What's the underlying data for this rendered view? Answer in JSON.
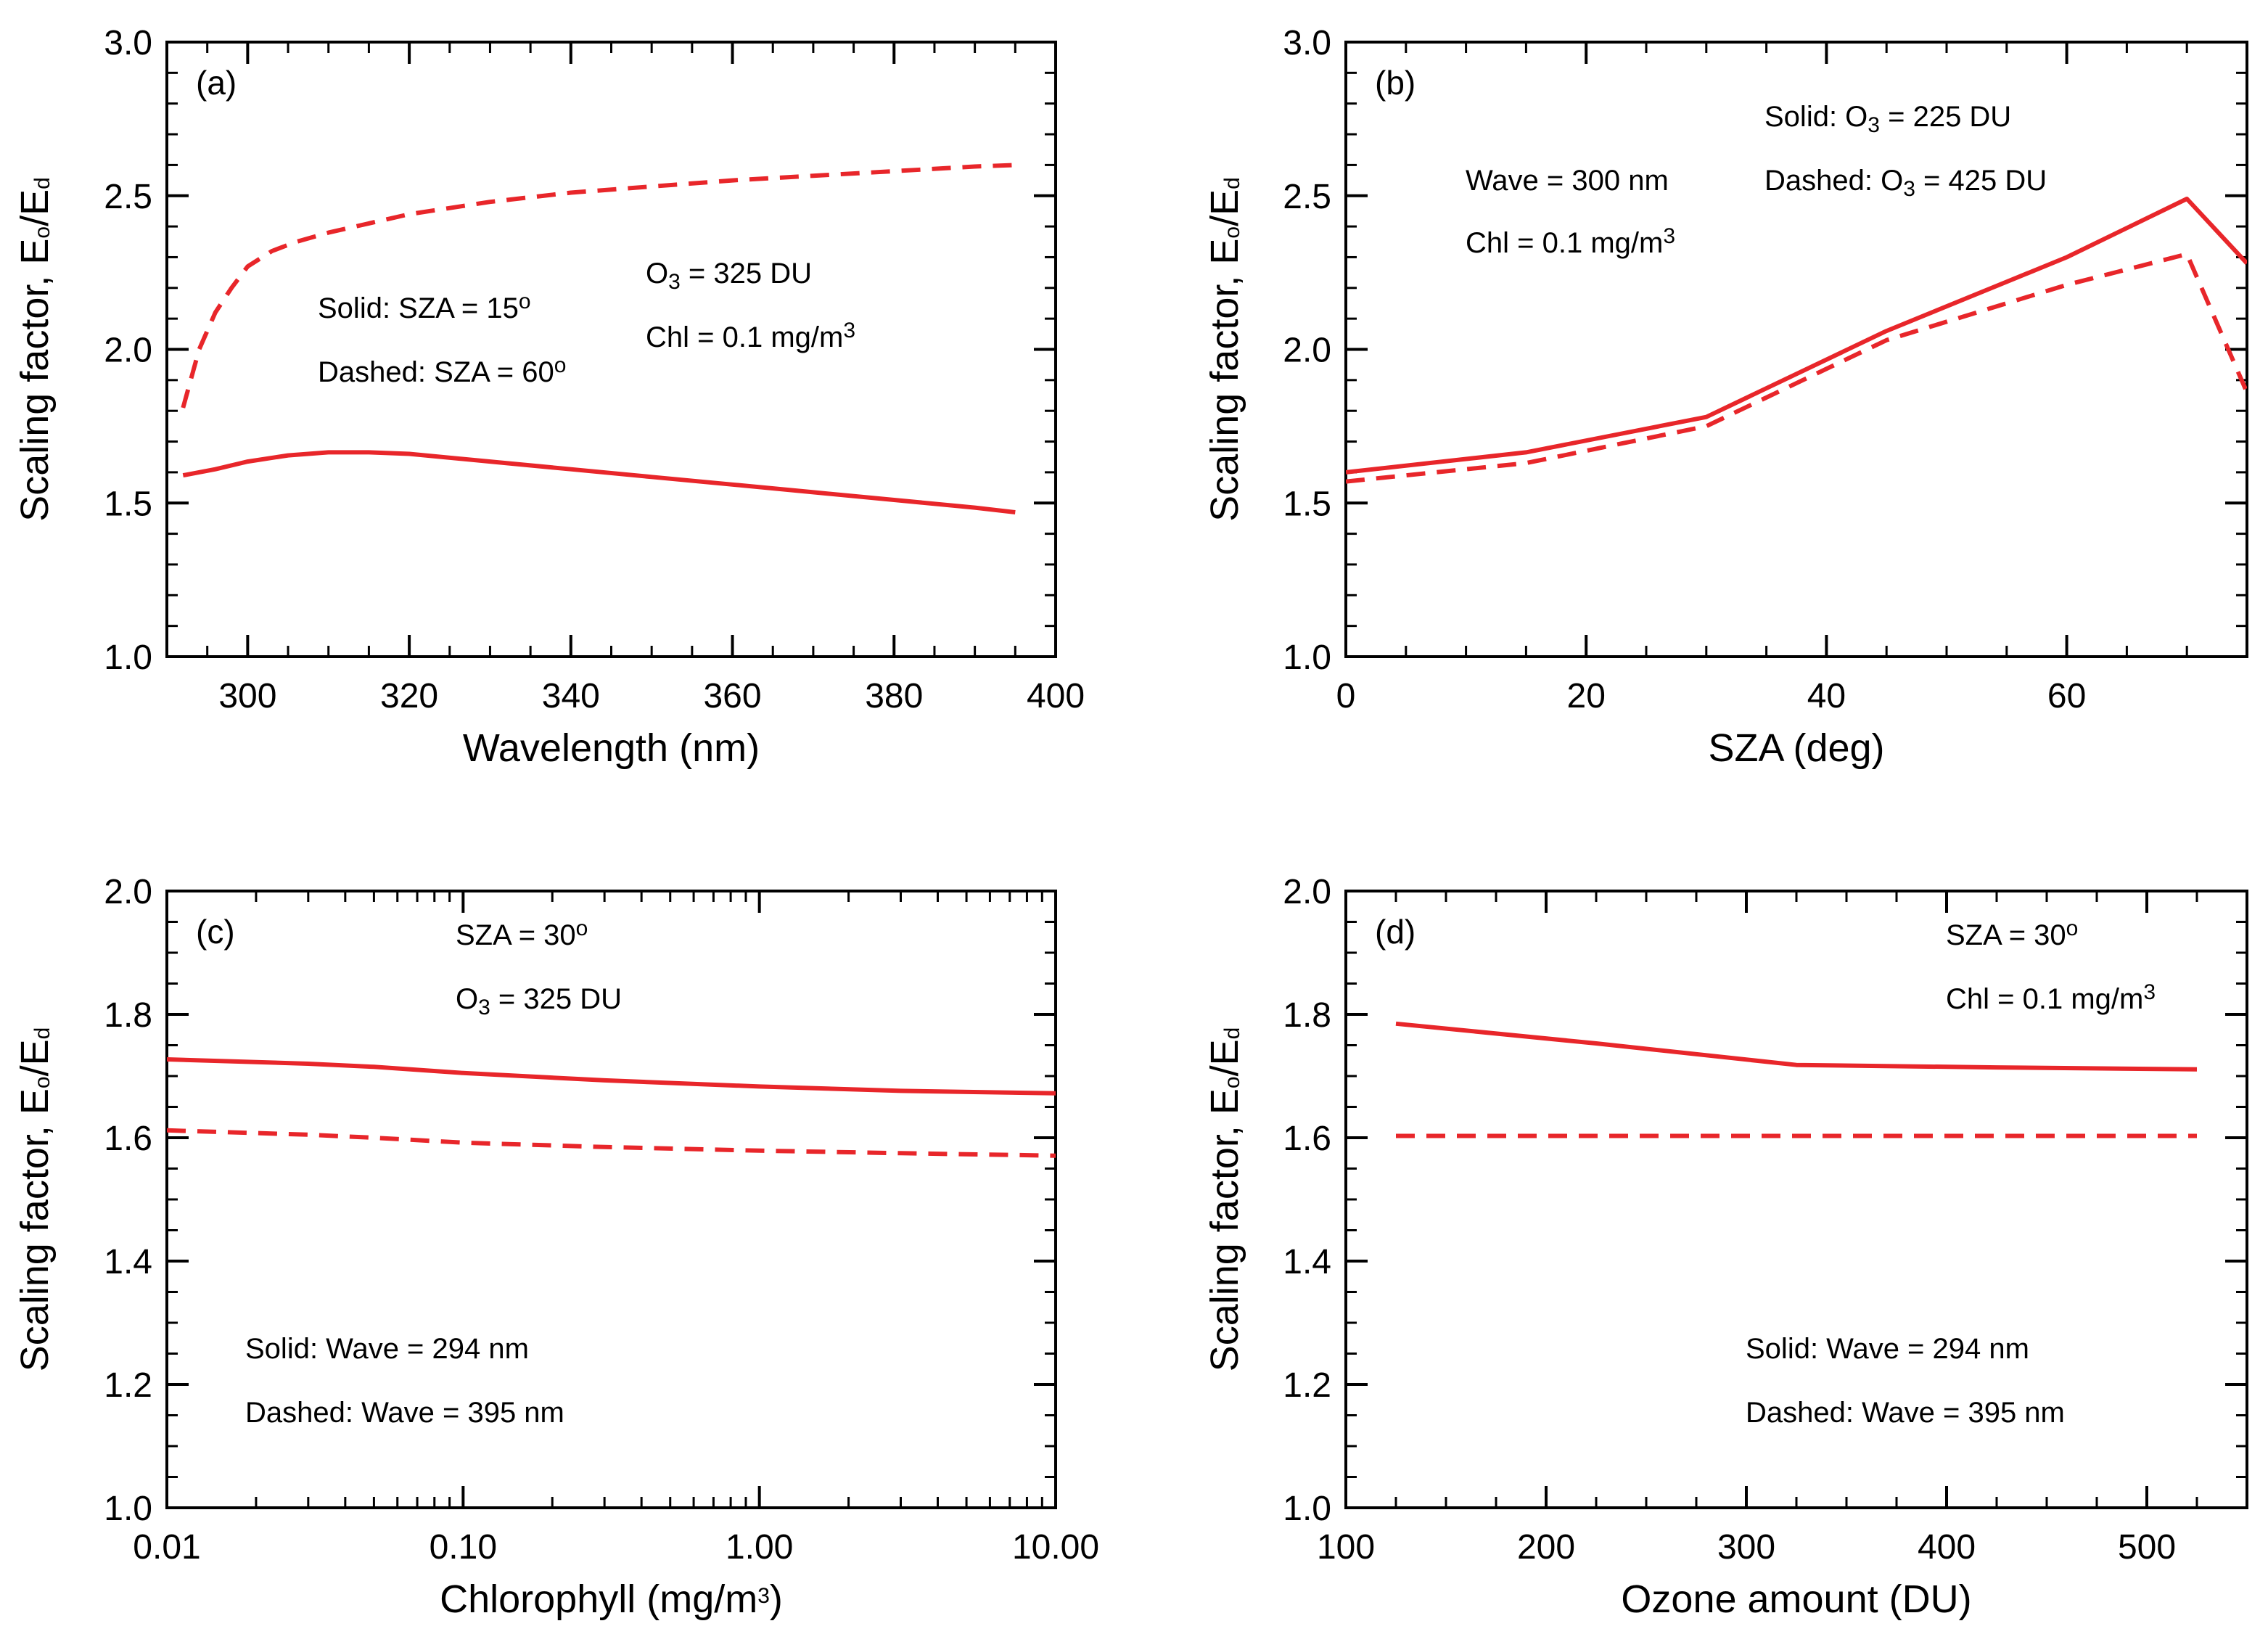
{
  "colors": {
    "line": "#e8262a",
    "axis": "#000000",
    "background": "#ffffff"
  },
  "chart_data": [
    {
      "type": "line",
      "panel_label": "(a)",
      "xlabel": "Wavelength (nm)",
      "ylabel": "Scaling factor, E",
      "ylabel_sub1": "o",
      "ylabel_mid": "/E",
      "ylabel_sub2": "d",
      "xscale": "linear",
      "xlim": [
        290,
        400
      ],
      "ylim": [
        1.0,
        3.0
      ],
      "xticks": [
        300,
        320,
        340,
        360,
        380,
        400
      ],
      "xtick_labels": [
        "300",
        "320",
        "340",
        "360",
        "380",
        "400"
      ],
      "yticks": [
        1.0,
        1.5,
        2.0,
        2.5,
        3.0
      ],
      "ytick_labels": [
        "1.0",
        "1.5",
        "2.0",
        "2.5",
        "3.0"
      ],
      "xminor": 5,
      "yminor": 0.1,
      "series": [
        {
          "style": "solid",
          "x": [
            292,
            296,
            300,
            305,
            310,
            315,
            320,
            330,
            340,
            350,
            360,
            370,
            380,
            390,
            395
          ],
          "y": [
            1.59,
            1.61,
            1.635,
            1.655,
            1.665,
            1.665,
            1.66,
            1.635,
            1.61,
            1.585,
            1.56,
            1.535,
            1.51,
            1.485,
            1.47
          ]
        },
        {
          "style": "dashed",
          "x": [
            292,
            294,
            296,
            298,
            300,
            303,
            306,
            310,
            315,
            320,
            330,
            340,
            350,
            360,
            370,
            380,
            390,
            395
          ],
          "y": [
            1.81,
            2.0,
            2.12,
            2.2,
            2.27,
            2.32,
            2.35,
            2.38,
            2.41,
            2.44,
            2.48,
            2.51,
            2.53,
            2.55,
            2.565,
            2.58,
            2.595,
            2.6
          ]
        }
      ],
      "annotations": [
        {
          "id": "a-solid",
          "parts": [
            {
              "t": "Solid: SZA = 15"
            },
            {
              "t": "o",
              "kind": "sup"
            }
          ]
        },
        {
          "id": "a-dashed",
          "parts": [
            {
              "t": "Dashed: SZA = 60"
            },
            {
              "t": "o",
              "kind": "sup"
            }
          ]
        },
        {
          "id": "a-ozone",
          "parts": [
            {
              "t": "O"
            },
            {
              "t": "3",
              "kind": "sub"
            },
            {
              "t": " = 325 DU"
            }
          ]
        },
        {
          "id": "a-chl",
          "parts": [
            {
              "t": "Chl = 0.1 mg/m"
            },
            {
              "t": "3",
              "kind": "sup"
            }
          ]
        }
      ]
    },
    {
      "type": "line",
      "panel_label": "(b)",
      "xlabel": "SZA (deg)",
      "ylabel": "Scaling factor, E",
      "ylabel_sub1": "o",
      "ylabel_mid": "/E",
      "ylabel_sub2": "d",
      "xscale": "linear",
      "xlim": [
        0,
        75
      ],
      "ylim": [
        1.0,
        3.0
      ],
      "xticks": [
        0,
        20,
        40,
        60
      ],
      "xtick_labels": [
        "0",
        "20",
        "40",
        "60"
      ],
      "yticks": [
        1.0,
        1.5,
        2.0,
        2.5,
        3.0
      ],
      "ytick_labels": [
        "1.0",
        "1.5",
        "2.0",
        "2.5",
        "3.0"
      ],
      "xminor": 5,
      "yminor": 0.1,
      "series": [
        {
          "style": "solid",
          "x": [
            0,
            15,
            30,
            45,
            60,
            70,
            75
          ],
          "y": [
            1.6,
            1.665,
            1.78,
            2.06,
            2.3,
            2.49,
            2.28
          ]
        },
        {
          "style": "dashed",
          "x": [
            0,
            15,
            30,
            45,
            60,
            70,
            75
          ],
          "y": [
            1.57,
            1.63,
            1.75,
            2.03,
            2.21,
            2.31,
            1.86
          ]
        }
      ],
      "annotations": [
        {
          "id": "b-wave",
          "parts": [
            {
              "t": "Wave = 300 nm"
            }
          ]
        },
        {
          "id": "b-chl",
          "parts": [
            {
              "t": "Chl = 0.1 mg/m"
            },
            {
              "t": "3",
              "kind": "sup"
            }
          ]
        },
        {
          "id": "b-solid",
          "parts": [
            {
              "t": "Solid: O"
            },
            {
              "t": "3",
              "kind": "sub"
            },
            {
              "t": " = 225 DU"
            }
          ]
        },
        {
          "id": "b-dashed",
          "parts": [
            {
              "t": "Dashed: O"
            },
            {
              "t": "3",
              "kind": "sub"
            },
            {
              "t": " = 425 DU"
            }
          ]
        }
      ]
    },
    {
      "type": "line",
      "panel_label": "(c)",
      "xlabel": "Chlorophyll (mg/m",
      "xlabel_sup": "3",
      "xlabel_end": ")",
      "ylabel": "Scaling factor, E",
      "ylabel_sub1": "o",
      "ylabel_mid": "/E",
      "ylabel_sub2": "d",
      "xscale": "log",
      "xlim": [
        0.01,
        10.0
      ],
      "ylim": [
        1.0,
        2.0
      ],
      "xticks": [
        0.01,
        0.1,
        1.0,
        10.0
      ],
      "xtick_labels": [
        "0.01",
        "0.10",
        "1.00",
        "10.00"
      ],
      "yticks": [
        1.0,
        1.2,
        1.4,
        1.6,
        1.8,
        2.0
      ],
      "ytick_labels": [
        "1.0",
        "1.2",
        "1.4",
        "1.6",
        "1.8",
        "2.0"
      ],
      "yminor": 0.05,
      "series": [
        {
          "style": "solid",
          "x": [
            0.01,
            0.03,
            0.05,
            0.1,
            0.3,
            1.0,
            3.0,
            10.0
          ],
          "y": [
            1.727,
            1.72,
            1.715,
            1.705,
            1.693,
            1.683,
            1.676,
            1.672
          ]
        },
        {
          "style": "dashed",
          "x": [
            0.01,
            0.03,
            0.05,
            0.1,
            0.3,
            1.0,
            3.0,
            10.0
          ],
          "y": [
            1.612,
            1.605,
            1.6,
            1.592,
            1.585,
            1.579,
            1.575,
            1.571
          ]
        }
      ],
      "annotations": [
        {
          "id": "c-sza",
          "parts": [
            {
              "t": "SZA = 30"
            },
            {
              "t": "o",
              "kind": "sup"
            }
          ]
        },
        {
          "id": "c-ozone",
          "parts": [
            {
              "t": "O"
            },
            {
              "t": "3",
              "kind": "sub"
            },
            {
              "t": " = 325 DU"
            }
          ]
        },
        {
          "id": "c-solid",
          "parts": [
            {
              "t": "Solid: Wave = 294 nm"
            }
          ]
        },
        {
          "id": "c-dashed",
          "parts": [
            {
              "t": "Dashed: Wave = 395 nm"
            }
          ]
        }
      ]
    },
    {
      "type": "line",
      "panel_label": "(d)",
      "xlabel": "Ozone amount (DU)",
      "ylabel": "Scaling factor, E",
      "ylabel_sub1": "o",
      "ylabel_mid": "/E",
      "ylabel_sub2": "d",
      "xscale": "linear",
      "xlim": [
        100,
        550
      ],
      "ylim": [
        1.0,
        2.0
      ],
      "xticks": [
        100,
        200,
        300,
        400,
        500
      ],
      "xtick_labels": [
        "100",
        "200",
        "300",
        "400",
        "500"
      ],
      "yticks": [
        1.0,
        1.2,
        1.4,
        1.6,
        1.8,
        2.0
      ],
      "ytick_labels": [
        "1.0",
        "1.2",
        "1.4",
        "1.6",
        "1.8",
        "2.0"
      ],
      "xminor": 25,
      "yminor": 0.05,
      "series": [
        {
          "style": "solid",
          "x": [
            125,
            225,
            325,
            425,
            525
          ],
          "y": [
            1.785,
            1.753,
            1.718,
            1.714,
            1.711
          ]
        },
        {
          "style": "dashed",
          "x": [
            125,
            225,
            325,
            425,
            525
          ],
          "y": [
            1.603,
            1.603,
            1.603,
            1.603,
            1.603
          ]
        }
      ],
      "annotations": [
        {
          "id": "d-sza",
          "parts": [
            {
              "t": "SZA = 30"
            },
            {
              "t": "o",
              "kind": "sup"
            }
          ]
        },
        {
          "id": "d-chl",
          "parts": [
            {
              "t": "Chl = 0.1 mg/m"
            },
            {
              "t": "3",
              "kind": "sup"
            }
          ]
        },
        {
          "id": "d-solid",
          "parts": [
            {
              "t": "Solid: Wave = 294 nm"
            }
          ]
        },
        {
          "id": "d-dashed",
          "parts": [
            {
              "t": "Dashed: Wave = 395 nm"
            }
          ]
        }
      ]
    }
  ]
}
